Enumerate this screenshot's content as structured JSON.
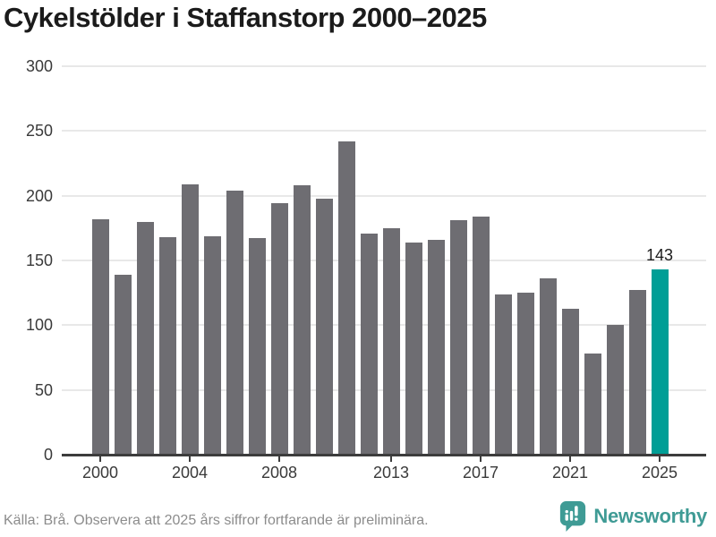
{
  "title": "Cykelstölder i Staffanstorp 2000–2025",
  "footer": {
    "source_note": "Källa: Brå. Observera att 2025 års siffror fortfarande är preliminära."
  },
  "branding": {
    "logo_text": "Newsworthy",
    "logo_color": "#3f9b95"
  },
  "colors": {
    "bar": "#6e6d72",
    "highlight": "#009e96",
    "gridline": "#e8e8e8",
    "axis": "#3d3d3d",
    "title_text": "#1b1b1b",
    "tick_label": "#3a3a3a",
    "footer_text": "#8c8c8c"
  },
  "chart_data": {
    "type": "bar",
    "title": "Cykelstölder i Staffanstorp 2000–2025",
    "xlabel": "",
    "ylabel": "",
    "ylim": [
      0,
      300
    ],
    "y_ticks": [
      0,
      50,
      100,
      150,
      200,
      250,
      300
    ],
    "grid": "horizontal",
    "legend": "none",
    "categories": [
      2000,
      2001,
      2002,
      2003,
      2004,
      2005,
      2006,
      2007,
      2008,
      2009,
      2010,
      2011,
      2012,
      2013,
      2014,
      2015,
      2016,
      2017,
      2018,
      2019,
      2020,
      2021,
      2022,
      2023,
      2024,
      2025
    ],
    "values": [
      182,
      139,
      180,
      168,
      209,
      169,
      204,
      167,
      194,
      208,
      198,
      242,
      171,
      175,
      164,
      166,
      181,
      184,
      124,
      125,
      136,
      113,
      78,
      100,
      127,
      143
    ],
    "x_tick_labels": [
      "2000",
      "2004",
      "2008",
      "2013",
      "2017",
      "2021",
      "2025"
    ],
    "highlight_index": 25,
    "highlight_value_label": "143",
    "annotation": "2025 bar highlighted in teal with value label 143"
  }
}
